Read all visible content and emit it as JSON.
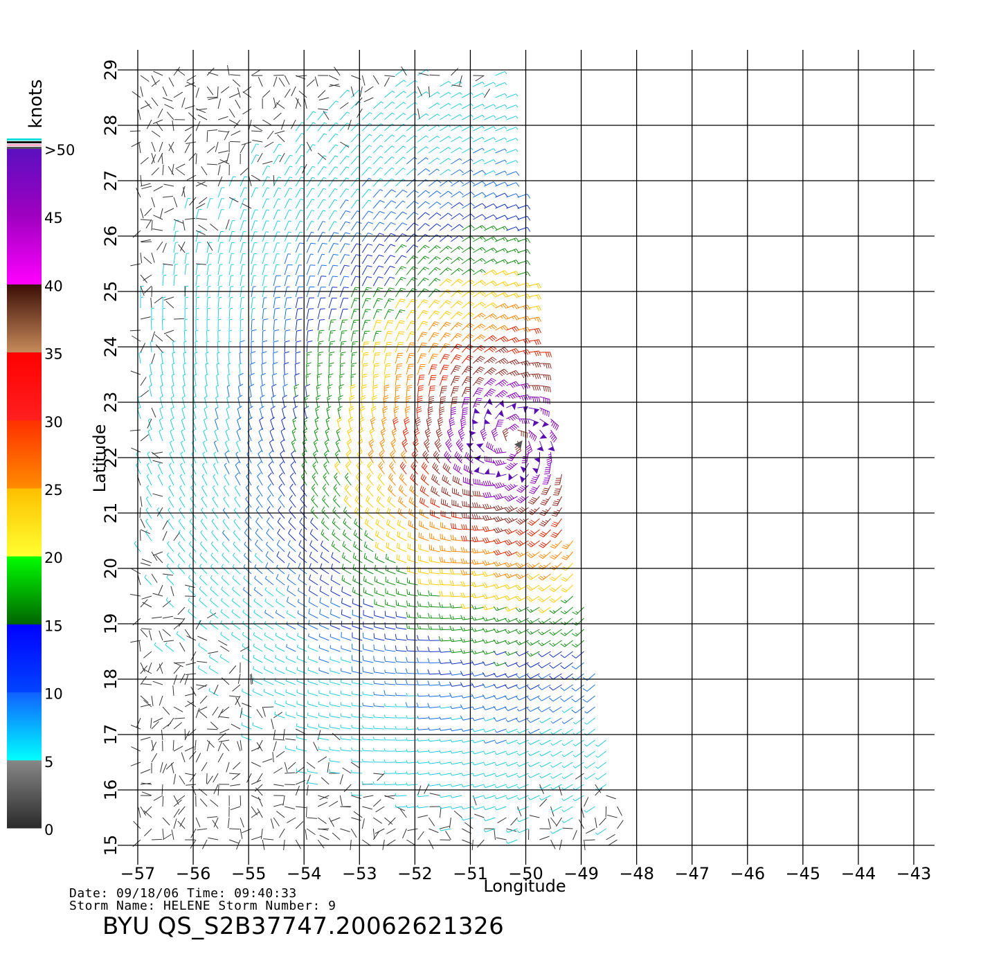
{
  "map": {
    "lon_range": [
      -57,
      -43
    ],
    "lat_range": [
      15,
      29
    ],
    "lon_ticks": [
      -57,
      -56,
      -55,
      -54,
      -53,
      -52,
      -51,
      -50,
      -49,
      -48,
      -47,
      -46,
      -45,
      -44,
      -43
    ],
    "lat_ticks": [
      15,
      16,
      17,
      18,
      19,
      20,
      21,
      22,
      23,
      24,
      25,
      26,
      27,
      28,
      29
    ],
    "lon_tick_labels": [
      "−57",
      "−56",
      "−55",
      "−54",
      "−53",
      "−52",
      "−51",
      "−50",
      "−49",
      "−48",
      "−47",
      "−46",
      "−45",
      "−44",
      "−43"
    ],
    "lat_tick_labels": [
      "15",
      "16",
      "17",
      "18",
      "19",
      "20",
      "21",
      "22",
      "23",
      "24",
      "25",
      "26",
      "27",
      "28",
      "29"
    ],
    "xlabel": "Longitude",
    "ylabel": "Latitude",
    "grid": true,
    "swath_corners_deg": {
      "top_left": [
        -57.0,
        29.0
      ],
      "top_right": [
        -50.4,
        29.0
      ],
      "right_upper": [
        -50.0,
        25.5
      ],
      "right_lower": [
        -48.2,
        15.0
      ],
      "bottom_left": [
        -57.0,
        15.0
      ]
    },
    "storm_center_deg": [
      -50.3,
      22.3
    ]
  },
  "colorbar": {
    "unit_label": "knots",
    "tick_labels": [
      ">50",
      "45",
      "40",
      "35",
      "30",
      "25",
      "20",
      "15",
      "10",
      "5",
      "0"
    ],
    "bands": [
      {
        "name": "5-0",
        "colors": [
          "#2a2a2a",
          "#888888"
        ]
      },
      {
        "name": "10-5",
        "colors": [
          "#00ffff",
          "#1060ff"
        ]
      },
      {
        "name": "15-10",
        "colors": [
          "#0044ff",
          "#0000ff"
        ]
      },
      {
        "name": "20-15",
        "colors": [
          "#006400",
          "#00ff00"
        ]
      },
      {
        "name": "25-20",
        "colors": [
          "#ffff30",
          "#ffbf00"
        ]
      },
      {
        "name": "30-25",
        "colors": [
          "#ff8c00",
          "#ff3000"
        ]
      },
      {
        "name": "35-30",
        "colors": [
          "#ff1f1f",
          "#ff0000"
        ]
      },
      {
        "name": "40-35",
        "colors": [
          "#c78a5a",
          "#3b0d05"
        ]
      },
      {
        "name": "45-40",
        "colors": [
          "#ff00ff",
          "#a000c0"
        ]
      },
      {
        "name": ">50-45",
        "colors": [
          "#a000c0",
          "#5a10c0"
        ]
      }
    ]
  },
  "wind_colors": {
    "calm": "#333333",
    "light": "#22ccdd",
    "moderate_low": "#1a6fe0",
    "moderate": "#1030c0",
    "fresh": "#109010",
    "strong": "#ffcc00",
    "near_gale": "#ff8800",
    "gale": "#dd2200",
    "severe": "#8b2a20",
    "storm": "#8800bb",
    "storm_center": "#5a10b0"
  },
  "info": {
    "date_line": "Date: 09/18/06   Time: 09:40:33",
    "storm_line": "Storm Name: HELENE   Storm Number: 9",
    "title": "BYU QS_S2B37747.20062621326"
  }
}
